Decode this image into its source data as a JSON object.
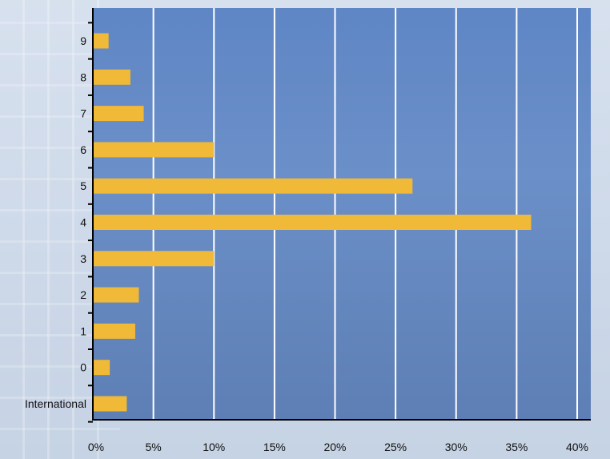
{
  "chart_data": {
    "type": "bar",
    "orientation": "horizontal",
    "categories": [
      "International",
      "0",
      "1",
      "2",
      "3",
      "4",
      "5",
      "6",
      "7",
      "8",
      "9"
    ],
    "values": [
      2.8,
      1.4,
      3.5,
      3.8,
      10.0,
      36.2,
      26.4,
      10.0,
      4.2,
      3.1,
      1.3
    ],
    "x_ticks": [
      "0%",
      "5%",
      "10%",
      "15%",
      "20%",
      "25%",
      "30%",
      "35%",
      "40%"
    ],
    "xlim": [
      0,
      40
    ],
    "title": "",
    "xlabel": "",
    "ylabel": "",
    "grid": "vertical",
    "legend": "none"
  },
  "colors": {
    "bar": "#f0b938",
    "gridline": "#ffffff",
    "axis": "#000000",
    "plot_background": "#6a8fca"
  }
}
